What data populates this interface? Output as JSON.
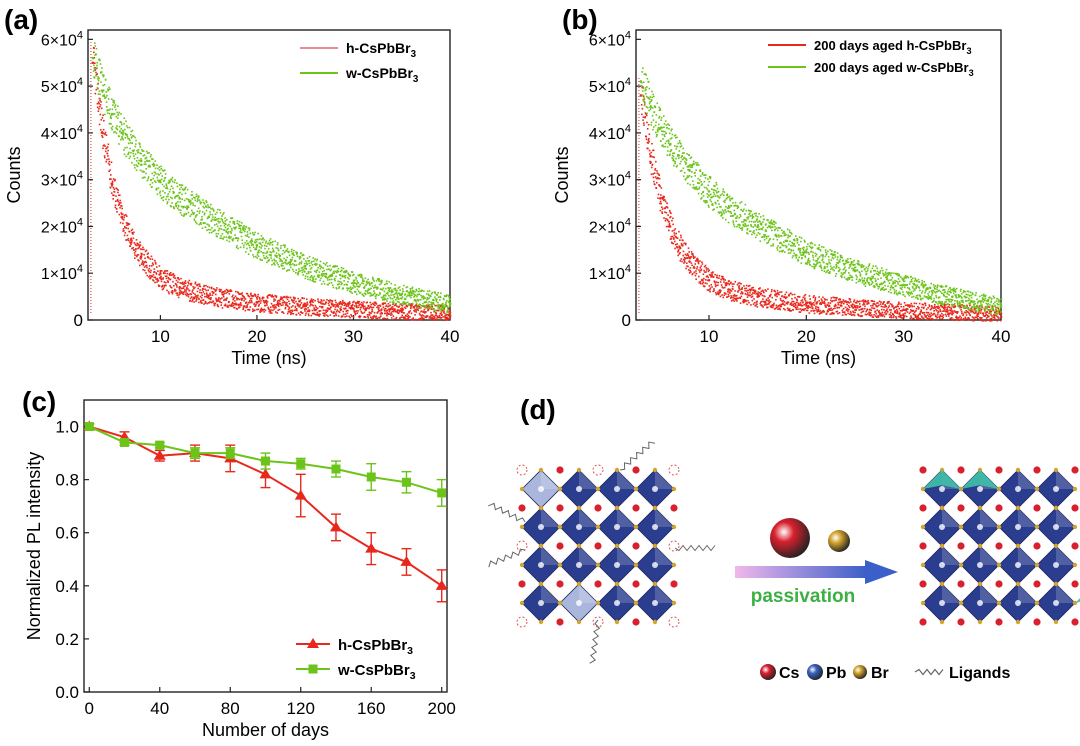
{
  "panels": {
    "a": {
      "label": "(a)"
    },
    "b": {
      "label": "(b)"
    },
    "c": {
      "label": "(c)"
    },
    "d": {
      "label": "(d)"
    }
  },
  "chart_data": [
    {
      "id": "a",
      "type": "scatter",
      "xlabel": "Time (ns)",
      "ylabel": "Counts",
      "xlim": [
        2.5,
        40
      ],
      "ylim": [
        0,
        62000
      ],
      "xticks": [
        10,
        20,
        30,
        40
      ],
      "yticks": [
        {
          "value": 0,
          "label": "0",
          "mant": "",
          "exp": ""
        },
        {
          "value": 10000,
          "label": "",
          "mant": "1×10",
          "exp": "4"
        },
        {
          "value": 20000,
          "label": "",
          "mant": "2×10",
          "exp": "4"
        },
        {
          "value": 30000,
          "label": "",
          "mant": "3×10",
          "exp": "4"
        },
        {
          "value": 40000,
          "label": "",
          "mant": "4×10",
          "exp": "4"
        },
        {
          "value": 50000,
          "label": "",
          "mant": "5×10",
          "exp": "4"
        },
        {
          "value": 60000,
          "label": "",
          "mant": "6×10",
          "exp": "4"
        }
      ],
      "legend_position": "top-right",
      "series": [
        {
          "name": "h-CsPbBr3",
          "legend_main": "h-CsPbBr",
          "legend_sub": "3",
          "color": "#e8281c",
          "legend_color": "#f08a8a",
          "x": [
            3,
            4,
            5,
            6,
            7,
            8,
            10,
            12,
            15,
            20,
            25,
            30,
            35,
            40
          ],
          "y": [
            55000,
            40000,
            29000,
            22000,
            17000,
            13500,
            9000,
            7000,
            5200,
            3800,
            3000,
            2400,
            2000,
            1600
          ]
        },
        {
          "name": "w-CsPbBr3",
          "legend_main": "w-CsPbBr",
          "legend_sub": "3",
          "color": "#6cc41a",
          "legend_color": "#6cc41a",
          "x": [
            3,
            4,
            5,
            6,
            8,
            10,
            12,
            15,
            20,
            25,
            30,
            35,
            40
          ],
          "y": [
            56000,
            49000,
            44000,
            40000,
            34000,
            29500,
            26000,
            22000,
            16000,
            11500,
            8000,
            5500,
            3500
          ]
        }
      ]
    },
    {
      "id": "b",
      "type": "scatter",
      "xlabel": "Time (ns)",
      "ylabel": "Counts",
      "xlim": [
        2.5,
        40
      ],
      "ylim": [
        0,
        62000
      ],
      "xticks": [
        10,
        20,
        30,
        40
      ],
      "yticks": [
        {
          "value": 0,
          "label": "0",
          "mant": "",
          "exp": ""
        },
        {
          "value": 10000,
          "label": "",
          "mant": "1×10",
          "exp": "4"
        },
        {
          "value": 20000,
          "label": "",
          "mant": "2×10",
          "exp": "4"
        },
        {
          "value": 30000,
          "label": "",
          "mant": "3×10",
          "exp": "4"
        },
        {
          "value": 40000,
          "label": "",
          "mant": "4×10",
          "exp": "4"
        },
        {
          "value": 50000,
          "label": "",
          "mant": "5×10",
          "exp": "4"
        },
        {
          "value": 60000,
          "label": "",
          "mant": "6×10",
          "exp": "4"
        }
      ],
      "legend_position": "top-right",
      "series": [
        {
          "name": "200 days aged h-CsPbBr3",
          "legend_main": "200 days aged h-CsPbBr",
          "legend_sub": "3",
          "color": "#e8281c",
          "legend_color": "#e8281c",
          "x": [
            3,
            4,
            5,
            6,
            7,
            8,
            10,
            12,
            15,
            20,
            25,
            30,
            35,
            40
          ],
          "y": [
            48000,
            35000,
            26000,
            20000,
            15500,
            12500,
            8500,
            6500,
            5000,
            3600,
            2800,
            2200,
            1800,
            1400
          ]
        },
        {
          "name": "200 days aged w-CsPbBr3",
          "legend_main": "200 days aged w-CsPbBr",
          "legend_sub": "3",
          "color": "#6cc41a",
          "legend_color": "#6cc41a",
          "x": [
            3,
            4,
            5,
            6,
            8,
            10,
            12,
            15,
            20,
            25,
            30,
            35,
            40
          ],
          "y": [
            51000,
            45500,
            41000,
            37500,
            32000,
            27500,
            24000,
            20000,
            14500,
            10500,
            7500,
            5000,
            3000
          ]
        }
      ]
    },
    {
      "id": "c",
      "type": "line",
      "xlabel": "Number of days",
      "ylabel": "Normalized PL intensity",
      "xlim": [
        -3,
        203
      ],
      "ylim": [
        0,
        1.1
      ],
      "xticks": [
        0,
        40,
        80,
        120,
        160,
        200
      ],
      "yticks": [
        {
          "value": 0,
          "label": "0.0"
        },
        {
          "value": 0.2,
          "label": "0.2"
        },
        {
          "value": 0.4,
          "label": "0.4"
        },
        {
          "value": 0.6,
          "label": "0.6"
        },
        {
          "value": 0.8,
          "label": "0.8"
        },
        {
          "value": 1.0,
          "label": "1.0"
        }
      ],
      "legend_position": "bottom-right",
      "series": [
        {
          "name": "h-CsPbBr3",
          "legend_main": "h-CsPbBr",
          "legend_sub": "3",
          "color": "#e8281c",
          "legend_color": "#e8281c",
          "marker": "triangle",
          "x": [
            0,
            20,
            40,
            60,
            80,
            100,
            120,
            140,
            160,
            180,
            200
          ],
          "y": [
            1.0,
            0.96,
            0.89,
            0.9,
            0.88,
            0.82,
            0.74,
            0.62,
            0.54,
            0.49,
            0.4
          ],
          "err": [
            0.01,
            0.02,
            0.02,
            0.03,
            0.05,
            0.05,
            0.08,
            0.05,
            0.06,
            0.05,
            0.06
          ]
        },
        {
          "name": "w-CsPbBr3",
          "legend_main": "w-CsPbBr",
          "legend_sub": "3",
          "color": "#6cc41a",
          "legend_color": "#6cc41a",
          "marker": "square",
          "x": [
            0,
            20,
            40,
            60,
            80,
            100,
            120,
            140,
            160,
            180,
            200
          ],
          "y": [
            1.0,
            0.94,
            0.93,
            0.9,
            0.9,
            0.87,
            0.86,
            0.84,
            0.81,
            0.79,
            0.75
          ],
          "err": [
            0.01,
            0.01,
            0.01,
            0.02,
            0.02,
            0.03,
            0.02,
            0.03,
            0.05,
            0.04,
            0.05
          ]
        }
      ]
    }
  ],
  "diagram": {
    "arrow_label": "passivation",
    "legend": [
      {
        "label": "Cs",
        "color": "#d9202e",
        "name": "cs-ion"
      },
      {
        "label": "Pb",
        "color": "#3a62c2",
        "name": "pb-ion"
      },
      {
        "label": "Br",
        "color": "#d4a52e",
        "name": "br-ion"
      },
      {
        "label": "Ligands",
        "color": "#555555",
        "name": "ligand"
      }
    ],
    "colors": {
      "octahedron": "#2b3d8f",
      "defect_octahedron": "#aab6dc",
      "passivated_octahedron": "#3fc1a7",
      "arrow_start": "#f1b7ec",
      "arrow_end": "#3a5fc8",
      "arrow_text": "#3cb043"
    }
  }
}
